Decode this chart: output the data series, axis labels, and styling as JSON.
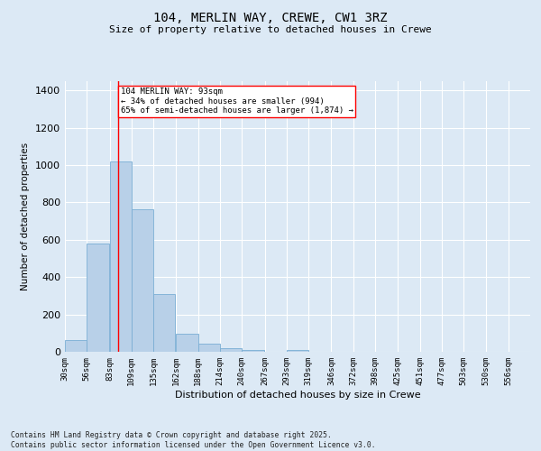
{
  "title_line1": "104, MERLIN WAY, CREWE, CW1 3RZ",
  "title_line2": "Size of property relative to detached houses in Crewe",
  "xlabel": "Distribution of detached houses by size in Crewe",
  "ylabel": "Number of detached properties",
  "bar_color": "#b8d0e8",
  "bar_edge_color": "#7aaed4",
  "background_color": "#dce9f5",
  "grid_color": "#ffffff",
  "annotation_line_color": "red",
  "annotation_property_sqm": 93,
  "annotation_text_line1": "104 MERLIN WAY: 93sqm",
  "annotation_text_line2": "← 34% of detached houses are smaller (994)",
  "annotation_text_line3": "65% of semi-detached houses are larger (1,874) →",
  "annotation_box_color": "#ffffff",
  "annotation_box_edge": "red",
  "footer_text": "Contains HM Land Registry data © Crown copyright and database right 2025.\nContains public sector information licensed under the Open Government Licence v3.0.",
  "bin_labels": [
    "30sqm",
    "56sqm",
    "83sqm",
    "109sqm",
    "135sqm",
    "162sqm",
    "188sqm",
    "214sqm",
    "240sqm",
    "267sqm",
    "293sqm",
    "319sqm",
    "346sqm",
    "372sqm",
    "398sqm",
    "425sqm",
    "451sqm",
    "477sqm",
    "503sqm",
    "530sqm",
    "556sqm"
  ],
  "bin_edges": [
    30,
    56,
    83,
    109,
    135,
    162,
    188,
    214,
    240,
    267,
    293,
    319,
    346,
    372,
    398,
    425,
    451,
    477,
    503,
    530,
    556
  ],
  "bar_heights": [
    65,
    580,
    1020,
    765,
    310,
    95,
    45,
    20,
    10,
    0,
    10,
    0,
    0,
    0,
    0,
    0,
    0,
    0,
    0,
    0,
    0
  ],
  "ylim": [
    0,
    1450
  ],
  "yticks": [
    0,
    200,
    400,
    600,
    800,
    1000,
    1200,
    1400
  ]
}
